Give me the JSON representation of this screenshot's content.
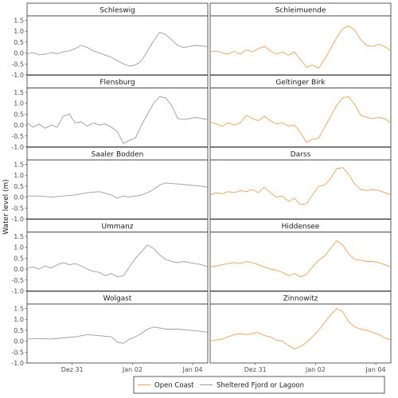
{
  "chart_data": {
    "type": "line",
    "ylabel": "Water level (m)",
    "xlabel": "",
    "x_ticks": [
      "Dez 31",
      "Jan 02",
      "Jan 04"
    ],
    "x_tick_positions_days": [
      1.5,
      3.5,
      5.5
    ],
    "x_range_days": [
      0,
      6
    ],
    "y_ticks": [
      "-1.0",
      "-0.5",
      "0.0",
      "0.5",
      "1.0",
      "1.5"
    ],
    "y_tick_values": [
      -1.0,
      -0.5,
      0.0,
      0.5,
      1.0,
      1.5
    ],
    "ylim": [
      -1.0,
      1.7
    ],
    "grid": false,
    "legend": {
      "position": "bottom",
      "entries": [
        {
          "label": "Open Coast",
          "color": "#E8A45C"
        },
        {
          "label": "Sheltered Fjord or Lagoon",
          "color": "#9A9AAD"
        }
      ]
    },
    "panels": [
      {
        "title": "Schleswig",
        "category": "Sheltered Fjord or Lagoon",
        "x": [
          0,
          0.2,
          0.4,
          0.6,
          0.8,
          1.0,
          1.2,
          1.4,
          1.6,
          1.8,
          2.0,
          2.2,
          2.4,
          2.6,
          2.8,
          3.0,
          3.2,
          3.4,
          3.6,
          3.8,
          4.0,
          4.2,
          4.4,
          4.6,
          4.8,
          5.0,
          5.2,
          5.4,
          5.6,
          5.8,
          6.0
        ],
        "y": [
          -0.05,
          0.02,
          -0.08,
          -0.05,
          0.02,
          -0.03,
          0.05,
          0.1,
          0.2,
          0.35,
          0.25,
          0.1,
          0.0,
          -0.1,
          -0.2,
          -0.35,
          -0.5,
          -0.6,
          -0.55,
          -0.35,
          0.1,
          0.55,
          0.95,
          0.85,
          0.6,
          0.35,
          0.25,
          0.3,
          0.35,
          0.32,
          0.3
        ]
      },
      {
        "title": "Schleimuende",
        "category": "Open Coast",
        "x": [
          0,
          0.2,
          0.4,
          0.6,
          0.8,
          1.0,
          1.2,
          1.4,
          1.6,
          1.8,
          2.0,
          2.2,
          2.4,
          2.6,
          2.8,
          3.0,
          3.2,
          3.4,
          3.6,
          3.8,
          4.0,
          4.2,
          4.4,
          4.6,
          4.8,
          5.0,
          5.2,
          5.4,
          5.6,
          5.8,
          6.0
        ],
        "y": [
          0.05,
          0.1,
          0.0,
          -0.05,
          0.08,
          -0.05,
          0.15,
          0.05,
          0.2,
          0.3,
          0.1,
          -0.05,
          0.05,
          -0.1,
          0.05,
          -0.3,
          -0.65,
          -0.55,
          -0.7,
          -0.3,
          0.2,
          0.7,
          1.1,
          1.25,
          1.05,
          0.6,
          0.35,
          0.3,
          0.4,
          0.3,
          0.1
        ]
      },
      {
        "title": "Flensburg",
        "category": "Sheltered Fjord or Lagoon",
        "x": [
          0,
          0.2,
          0.4,
          0.6,
          0.8,
          1.0,
          1.2,
          1.4,
          1.6,
          1.8,
          2.0,
          2.2,
          2.4,
          2.6,
          2.8,
          3.0,
          3.2,
          3.4,
          3.6,
          3.8,
          4.0,
          4.2,
          4.4,
          4.6,
          4.8,
          5.0,
          5.2,
          5.4,
          5.6,
          5.8,
          6.0
        ],
        "y": [
          0.1,
          -0.1,
          0.05,
          -0.15,
          0.0,
          -0.1,
          0.4,
          0.5,
          0.1,
          0.15,
          -0.05,
          0.1,
          0.0,
          0.05,
          -0.1,
          -0.3,
          -0.85,
          -0.7,
          -0.6,
          0.0,
          0.5,
          1.0,
          1.3,
          1.25,
          0.9,
          0.3,
          0.25,
          0.3,
          0.35,
          0.3,
          0.25
        ]
      },
      {
        "title": "Geltinger Birk",
        "category": "Open Coast",
        "x": [
          0,
          0.2,
          0.4,
          0.6,
          0.8,
          1.0,
          1.2,
          1.4,
          1.6,
          1.8,
          2.0,
          2.2,
          2.4,
          2.6,
          2.8,
          3.0,
          3.2,
          3.4,
          3.6,
          3.8,
          4.0,
          4.2,
          4.4,
          4.6,
          4.8,
          5.0,
          5.2,
          5.4,
          5.6,
          5.8,
          6.0
        ],
        "y": [
          0.15,
          0.05,
          -0.05,
          0.1,
          0.0,
          0.1,
          0.45,
          0.3,
          0.2,
          0.4,
          0.2,
          0.05,
          0.1,
          -0.05,
          0.0,
          -0.35,
          -0.8,
          -0.65,
          -0.6,
          -0.1,
          0.4,
          0.9,
          1.25,
          1.3,
          0.95,
          0.45,
          0.35,
          0.3,
          0.35,
          0.3,
          0.1
        ]
      },
      {
        "title": "Saaler Bodden",
        "category": "Sheltered Fjord or Lagoon",
        "x": [
          0,
          0.4,
          0.8,
          1.2,
          1.6,
          2.0,
          2.4,
          2.8,
          3.0,
          3.2,
          3.4,
          3.6,
          3.8,
          4.0,
          4.2,
          4.4,
          4.6,
          4.8,
          5.0,
          5.4,
          5.8,
          6.0
        ],
        "y": [
          0.05,
          0.05,
          0.0,
          0.05,
          0.1,
          0.2,
          0.25,
          0.1,
          -0.05,
          0.05,
          0.0,
          0.05,
          0.1,
          0.2,
          0.35,
          0.55,
          0.65,
          0.62,
          0.6,
          0.55,
          0.5,
          0.45
        ]
      },
      {
        "title": "Darss",
        "category": "Open Coast",
        "x": [
          0,
          0.2,
          0.4,
          0.6,
          0.8,
          1.0,
          1.2,
          1.4,
          1.6,
          1.8,
          2.0,
          2.2,
          2.4,
          2.6,
          2.8,
          3.0,
          3.2,
          3.4,
          3.6,
          3.8,
          4.0,
          4.2,
          4.4,
          4.6,
          4.8,
          5.0,
          5.2,
          5.4,
          5.6,
          5.8,
          6.0
        ],
        "y": [
          0.1,
          0.2,
          0.15,
          0.25,
          0.2,
          0.3,
          0.25,
          0.35,
          0.2,
          0.45,
          0.2,
          0.0,
          0.05,
          -0.2,
          -0.05,
          -0.35,
          -0.3,
          0.1,
          0.5,
          0.55,
          0.85,
          1.3,
          1.35,
          1.05,
          0.6,
          0.35,
          0.3,
          0.35,
          0.3,
          0.2,
          0.1
        ]
      },
      {
        "title": "Ummanz",
        "category": "Sheltered Fjord or Lagoon",
        "x": [
          0,
          0.2,
          0.4,
          0.6,
          0.8,
          1.0,
          1.2,
          1.4,
          1.6,
          1.8,
          2.0,
          2.2,
          2.4,
          2.6,
          2.8,
          3.0,
          3.2,
          3.4,
          3.6,
          3.8,
          4.0,
          4.2,
          4.4,
          4.6,
          4.8,
          5.0,
          5.2,
          5.4,
          5.6,
          5.8,
          6.0
        ],
        "y": [
          0.05,
          0.1,
          0.0,
          0.15,
          0.05,
          0.2,
          0.3,
          0.2,
          0.25,
          0.15,
          0.0,
          -0.1,
          -0.15,
          -0.3,
          -0.2,
          -0.35,
          -0.3,
          0.1,
          0.5,
          0.8,
          1.1,
          0.95,
          0.65,
          0.45,
          0.35,
          0.3,
          0.35,
          0.3,
          0.25,
          0.2,
          0.1
        ]
      },
      {
        "title": "Hiddensee",
        "category": "Open Coast",
        "x": [
          0,
          0.2,
          0.4,
          0.6,
          0.8,
          1.0,
          1.2,
          1.4,
          1.6,
          1.8,
          2.0,
          2.2,
          2.4,
          2.6,
          2.8,
          3.0,
          3.2,
          3.4,
          3.6,
          3.8,
          4.0,
          4.2,
          4.4,
          4.6,
          4.8,
          5.0,
          5.2,
          5.4,
          5.6,
          5.8,
          6.0
        ],
        "y": [
          0.1,
          0.15,
          0.2,
          0.25,
          0.3,
          0.25,
          0.35,
          0.3,
          0.2,
          0.1,
          0.0,
          -0.05,
          -0.15,
          -0.3,
          -0.2,
          -0.35,
          -0.25,
          0.1,
          0.4,
          0.6,
          0.95,
          1.3,
          1.1,
          0.7,
          0.45,
          0.4,
          0.35,
          0.35,
          0.3,
          0.2,
          0.1
        ]
      },
      {
        "title": "Wolgast",
        "category": "Sheltered Fjord or Lagoon",
        "x": [
          0,
          0.4,
          0.8,
          1.2,
          1.6,
          2.0,
          2.4,
          2.8,
          3.0,
          3.2,
          3.4,
          3.6,
          3.8,
          4.0,
          4.2,
          4.4,
          4.6,
          4.8,
          5.0,
          5.4,
          5.8,
          6.0
        ],
        "y": [
          0.1,
          0.12,
          0.1,
          0.15,
          0.2,
          0.3,
          0.25,
          0.2,
          -0.05,
          -0.1,
          0.1,
          0.2,
          0.35,
          0.55,
          0.65,
          0.6,
          0.55,
          0.55,
          0.55,
          0.5,
          0.45,
          0.4
        ]
      },
      {
        "title": "Zinnowitz",
        "category": "Open Coast",
        "x": [
          0,
          0.2,
          0.4,
          0.6,
          0.8,
          1.0,
          1.2,
          1.4,
          1.6,
          1.8,
          2.0,
          2.2,
          2.4,
          2.6,
          2.8,
          3.0,
          3.2,
          3.4,
          3.6,
          3.8,
          4.0,
          4.2,
          4.4,
          4.6,
          4.8,
          5.0,
          5.2,
          5.4,
          5.6,
          5.8,
          6.0
        ],
        "y": [
          0.0,
          0.05,
          0.1,
          0.2,
          0.3,
          0.35,
          0.3,
          0.35,
          0.4,
          0.25,
          0.2,
          0.05,
          0.0,
          -0.2,
          -0.35,
          -0.25,
          -0.05,
          0.2,
          0.5,
          0.85,
          1.2,
          1.5,
          1.35,
          0.9,
          0.65,
          0.55,
          0.5,
          0.4,
          0.3,
          0.15,
          0.05
        ]
      }
    ]
  }
}
